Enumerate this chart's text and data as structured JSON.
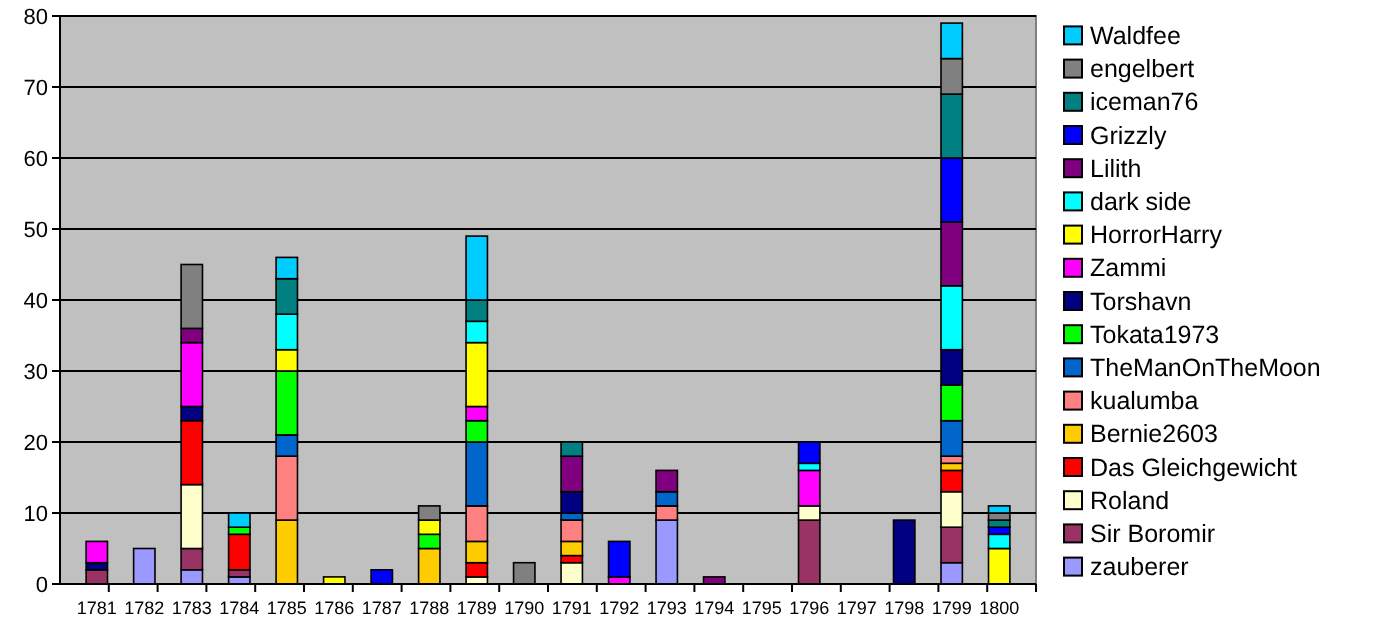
{
  "chart_data": {
    "type": "bar",
    "stacked": true,
    "categories": [
      "1781",
      "1782",
      "1783",
      "1784",
      "1785",
      "1786",
      "1787",
      "1788",
      "1789",
      "1790",
      "1791",
      "1792",
      "1793",
      "1794",
      "1795",
      "1796",
      "1797",
      "1798",
      "1799",
      "1800"
    ],
    "ylim": [
      0,
      80
    ],
    "yticks": [
      0,
      10,
      20,
      30,
      40,
      50,
      60,
      70,
      80
    ],
    "grid": "y",
    "legend": "right",
    "series": [
      {
        "name": "zauberer",
        "color": "#9999ff",
        "values": [
          0,
          5,
          2,
          1,
          0,
          0,
          0,
          0,
          0,
          0,
          0,
          0,
          9,
          0,
          0,
          0,
          0,
          0,
          3,
          0
        ]
      },
      {
        "name": "Sir Boromir",
        "color": "#993366",
        "values": [
          2,
          0,
          3,
          1,
          0,
          0,
          0,
          0,
          0,
          0,
          0,
          0,
          0,
          0,
          0,
          9,
          0,
          0,
          5,
          0
        ]
      },
      {
        "name": "Roland",
        "color": "#ffffcc",
        "values": [
          0,
          0,
          9,
          0,
          0,
          0,
          0,
          0,
          1,
          0,
          3,
          0,
          0,
          0,
          0,
          2,
          0,
          0,
          5,
          0
        ]
      },
      {
        "name": "Das Gleichgewicht",
        "color": "#ff0000",
        "values": [
          0,
          0,
          9,
          5,
          0,
          0,
          0,
          0,
          2,
          0,
          1,
          0,
          0,
          0,
          0,
          0,
          0,
          0,
          3,
          0
        ]
      },
      {
        "name": "Bernie2603",
        "color": "#ffcc00",
        "values": [
          0,
          0,
          0,
          0,
          9,
          0,
          0,
          5,
          3,
          0,
          2,
          0,
          0,
          0,
          0,
          0,
          0,
          0,
          1,
          0
        ]
      },
      {
        "name": "kualumba",
        "color": "#ff8080",
        "values": [
          0,
          0,
          0,
          0,
          9,
          0,
          0,
          0,
          5,
          0,
          3,
          0,
          2,
          0,
          0,
          0,
          0,
          0,
          1,
          0
        ]
      },
      {
        "name": "TheManOnTheMoon",
        "color": "#0066cc",
        "values": [
          0,
          0,
          0,
          0,
          3,
          0,
          0,
          0,
          9,
          0,
          1,
          0,
          2,
          0,
          0,
          0,
          0,
          0,
          5,
          0
        ]
      },
      {
        "name": "Tokata1973",
        "color": "#00ff00",
        "values": [
          0,
          0,
          0,
          1,
          9,
          0,
          0,
          2,
          3,
          0,
          0,
          0,
          0,
          0,
          0,
          0,
          0,
          0,
          5,
          0
        ]
      },
      {
        "name": "Torshavn",
        "color": "#000080",
        "values": [
          1,
          0,
          2,
          0,
          0,
          0,
          0,
          0,
          0,
          0,
          3,
          0,
          0,
          0,
          0,
          0,
          0,
          9,
          5,
          0
        ]
      },
      {
        "name": "Zammi",
        "color": "#ff00ff",
        "values": [
          3,
          0,
          9,
          0,
          0,
          0,
          0,
          0,
          2,
          0,
          0,
          1,
          0,
          0,
          0,
          5,
          0,
          0,
          0,
          0
        ]
      },
      {
        "name": "HorrorHarry",
        "color": "#ffff00",
        "values": [
          0,
          0,
          0,
          0,
          3,
          1,
          0,
          2,
          9,
          0,
          0,
          0,
          0,
          0,
          0,
          0,
          0,
          0,
          0,
          5
        ]
      },
      {
        "name": "dark side",
        "color": "#00ffff",
        "values": [
          0,
          0,
          0,
          0,
          5,
          0,
          0,
          0,
          3,
          0,
          0,
          0,
          0,
          0,
          0,
          1,
          0,
          0,
          9,
          2
        ]
      },
      {
        "name": "Lilith",
        "color": "#800080",
        "values": [
          0,
          0,
          2,
          0,
          0,
          0,
          0,
          0,
          0,
          0,
          5,
          0,
          3,
          1,
          0,
          0,
          0,
          0,
          9,
          0
        ]
      },
      {
        "name": "Grizzly",
        "color": "#0000ff",
        "values": [
          0,
          0,
          0,
          0,
          0,
          0,
          2,
          0,
          0,
          0,
          0,
          5,
          0,
          0,
          0,
          3,
          0,
          0,
          9,
          1
        ]
      },
      {
        "name": "iceman76",
        "color": "#008080",
        "values": [
          0,
          0,
          0,
          0,
          5,
          0,
          0,
          0,
          3,
          0,
          2,
          0,
          0,
          0,
          0,
          0,
          0,
          0,
          9,
          1
        ]
      },
      {
        "name": "engelbert",
        "color": "#808080",
        "values": [
          0,
          0,
          9,
          0,
          0,
          0,
          0,
          2,
          0,
          3,
          0,
          0,
          0,
          0,
          0,
          0,
          0,
          0,
          5,
          1
        ]
      },
      {
        "name": "Waldfee",
        "color": "#00ccff",
        "values": [
          0,
          0,
          0,
          2,
          3,
          0,
          0,
          0,
          9,
          0,
          0,
          0,
          0,
          0,
          0,
          0,
          0,
          0,
          5,
          1
        ]
      }
    ]
  }
}
